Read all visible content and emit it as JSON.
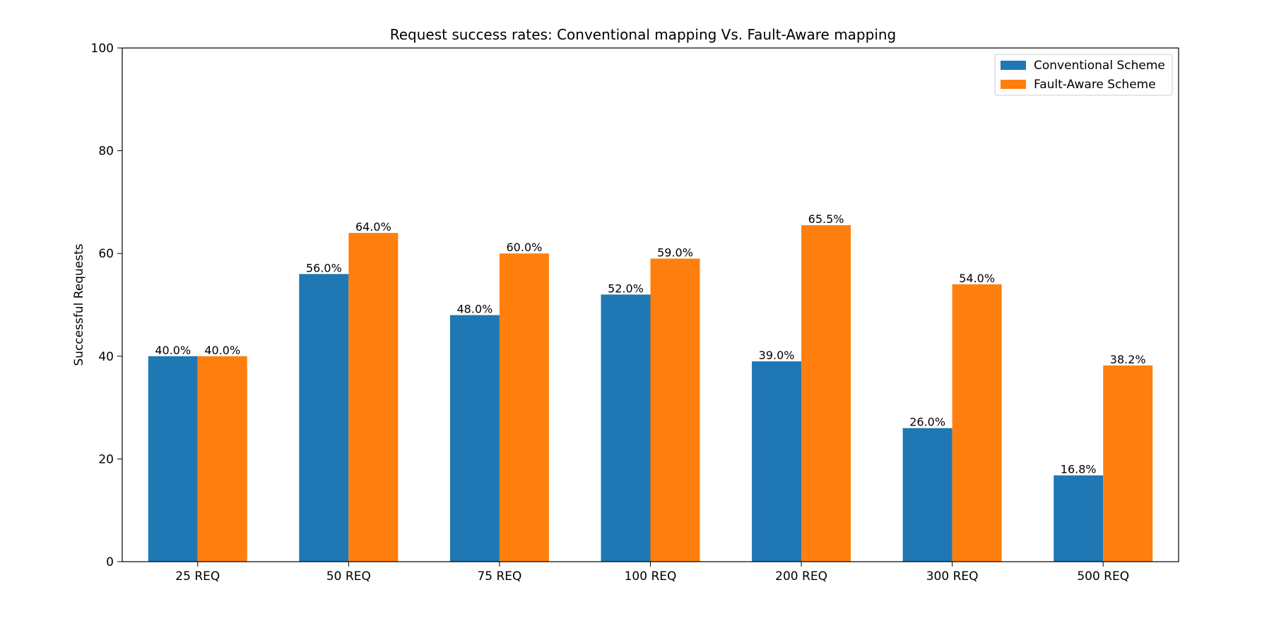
{
  "chart_data": {
    "type": "bar",
    "title": "Request success rates: Conventional mapping Vs. Fault-Aware mapping",
    "xlabel": "",
    "ylabel": "Successful Requests",
    "ylim": [
      0,
      100
    ],
    "yticks": [
      0,
      20,
      40,
      60,
      80,
      100
    ],
    "categories": [
      "25 REQ",
      "50 REQ",
      "75 REQ",
      "100 REQ",
      "200 REQ",
      "300 REQ",
      "500 REQ"
    ],
    "series": [
      {
        "name": "Conventional Scheme",
        "color": "#1f77b4",
        "values": [
          40.0,
          56.0,
          48.0,
          52.0,
          39.0,
          26.0,
          16.8
        ],
        "labels": [
          "40.0%",
          "56.0%",
          "48.0%",
          "52.0%",
          "39.0%",
          "26.0%",
          "16.8%"
        ]
      },
      {
        "name": "Fault-Aware Scheme",
        "color": "#ff7f0e",
        "values": [
          40.0,
          64.0,
          60.0,
          59.0,
          65.5,
          54.0,
          38.2
        ],
        "labels": [
          "40.0%",
          "64.0%",
          "60.0%",
          "59.0%",
          "65.5%",
          "54.0%",
          "38.2%"
        ]
      }
    ],
    "grid": false,
    "legend_position": "top-right"
  }
}
